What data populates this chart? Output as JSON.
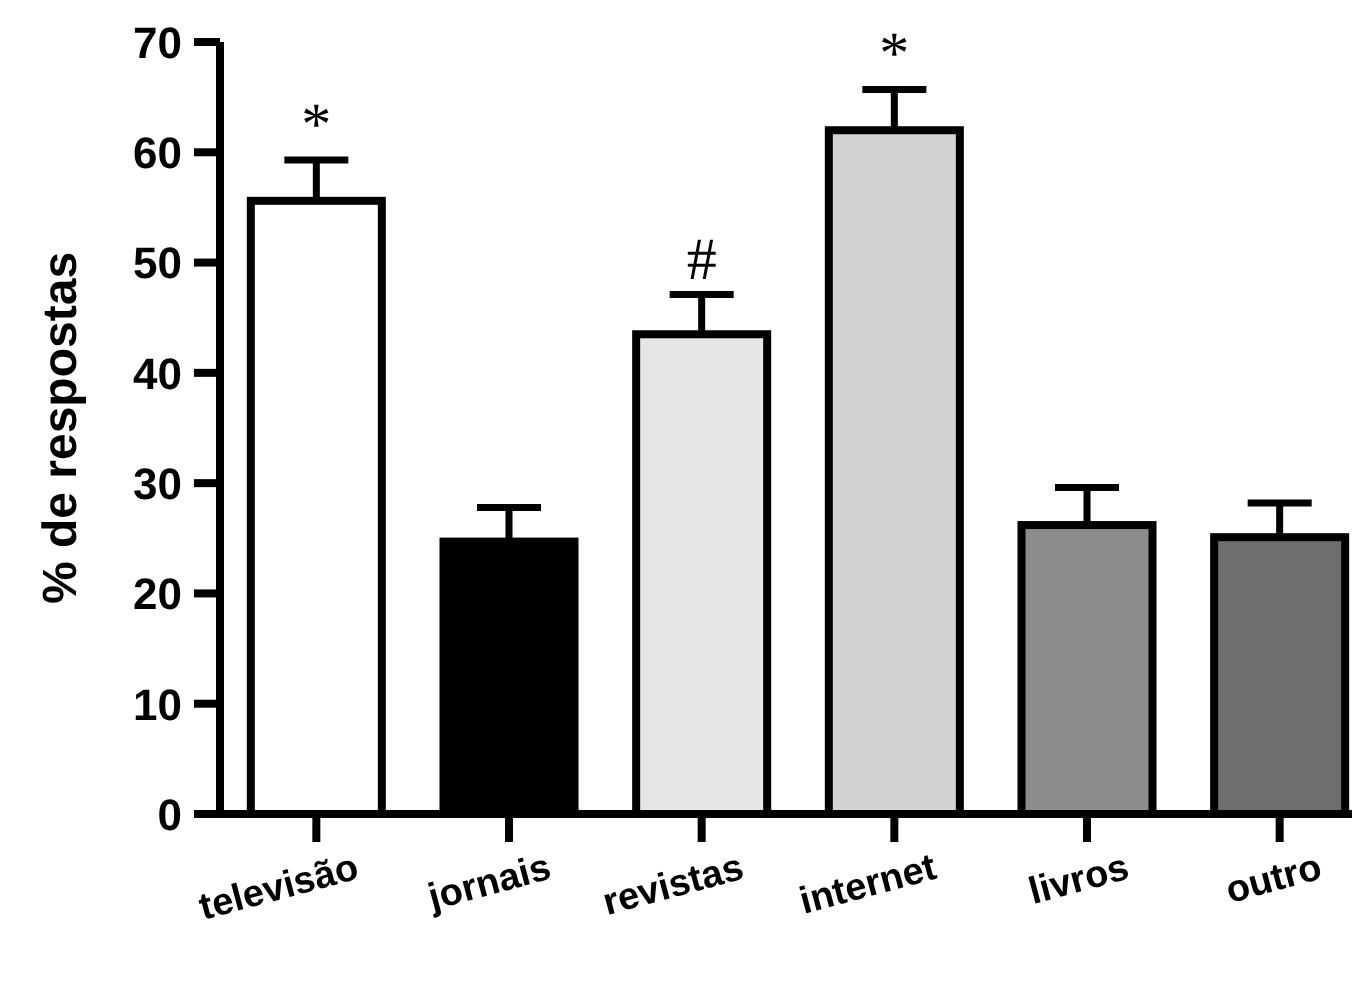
{
  "chart_data": {
    "type": "bar",
    "ylabel": "% de respostas",
    "categories": [
      "televisão",
      "jornais",
      "revistas",
      "internet",
      "livros",
      "outro"
    ],
    "values": [
      55.6,
      24.7,
      43.5,
      62,
      26.2,
      25.1
    ],
    "errors": [
      [
        55.6,
        59.3
      ],
      [
        24.7,
        27.8
      ],
      [
        43.5,
        47.1
      ],
      [
        62,
        65.7
      ],
      [
        26.2,
        29.6
      ],
      [
        25.1,
        28.2
      ]
    ],
    "colors": [
      "#ffffff",
      "#000000",
      "#e6e6e6",
      "#d3d3d3",
      "#8c8c8c",
      "#6e6e6e"
    ],
    "ylim": [
      0,
      70
    ],
    "yticks": [
      0,
      10,
      20,
      30,
      40,
      50,
      60,
      70
    ],
    "grid": false,
    "annotations": [
      {
        "text": "*",
        "x": "televisão",
        "y": 59.3
      },
      {
        "text": "#",
        "x": "revistas",
        "y": 47.1
      },
      {
        "text": "*",
        "x": "internet",
        "y": 65.7
      }
    ]
  }
}
